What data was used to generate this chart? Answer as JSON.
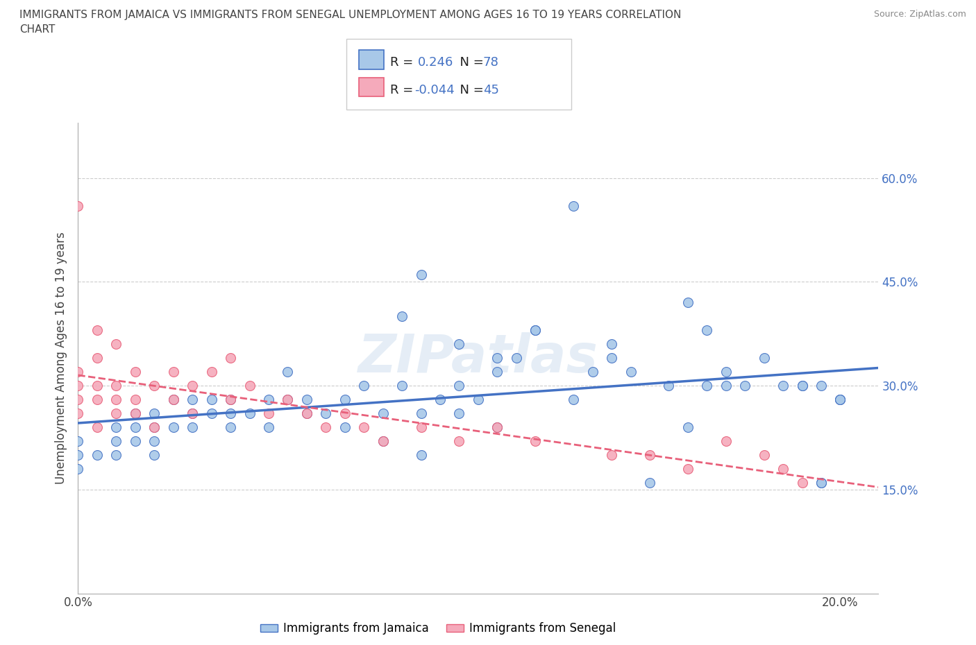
{
  "title_line1": "IMMIGRANTS FROM JAMAICA VS IMMIGRANTS FROM SENEGAL UNEMPLOYMENT AMONG AGES 16 TO 19 YEARS CORRELATION",
  "title_line2": "CHART",
  "source_text": "Source: ZipAtlas.com",
  "ylabel": "Unemployment Among Ages 16 to 19 years",
  "xlim": [
    0.0,
    0.21
  ],
  "ylim": [
    0.0,
    0.68
  ],
  "xticks": [
    0.0,
    0.05,
    0.1,
    0.15,
    0.2
  ],
  "xticklabels": [
    "0.0%",
    "",
    "",
    "",
    "20.0%"
  ],
  "yticks": [
    0.0,
    0.15,
    0.3,
    0.45,
    0.6
  ],
  "yticklabels_right": [
    "",
    "15.0%",
    "30.0%",
    "45.0%",
    "60.0%"
  ],
  "color_jamaica": "#a8c8e8",
  "color_senegal": "#f5aabb",
  "line_jamaica": "#4472c4",
  "line_senegal": "#e8607a",
  "R_jamaica": 0.246,
  "N_jamaica": 78,
  "R_senegal": -0.044,
  "N_senegal": 45,
  "jamaica_x": [
    0.0,
    0.0,
    0.0,
    0.005,
    0.01,
    0.01,
    0.01,
    0.015,
    0.015,
    0.015,
    0.02,
    0.02,
    0.02,
    0.02,
    0.025,
    0.025,
    0.03,
    0.03,
    0.03,
    0.035,
    0.035,
    0.04,
    0.04,
    0.04,
    0.045,
    0.05,
    0.05,
    0.055,
    0.055,
    0.06,
    0.06,
    0.065,
    0.07,
    0.07,
    0.075,
    0.08,
    0.08,
    0.085,
    0.09,
    0.09,
    0.095,
    0.1,
    0.1,
    0.105,
    0.11,
    0.11,
    0.115,
    0.12,
    0.13,
    0.135,
    0.14,
    0.145,
    0.15,
    0.16,
    0.165,
    0.17,
    0.175,
    0.18,
    0.19,
    0.195,
    0.195,
    0.085,
    0.09,
    0.1,
    0.11,
    0.12,
    0.13,
    0.14,
    0.155,
    0.16,
    0.165,
    0.17,
    0.185,
    0.19,
    0.195,
    0.2,
    0.2,
    0.2
  ],
  "jamaica_y": [
    0.22,
    0.2,
    0.18,
    0.2,
    0.22,
    0.24,
    0.2,
    0.22,
    0.24,
    0.26,
    0.22,
    0.24,
    0.26,
    0.2,
    0.24,
    0.28,
    0.24,
    0.26,
    0.28,
    0.26,
    0.28,
    0.24,
    0.26,
    0.28,
    0.26,
    0.24,
    0.28,
    0.28,
    0.32,
    0.26,
    0.28,
    0.26,
    0.24,
    0.28,
    0.3,
    0.22,
    0.26,
    0.3,
    0.2,
    0.26,
    0.28,
    0.26,
    0.3,
    0.28,
    0.24,
    0.32,
    0.34,
    0.38,
    0.28,
    0.32,
    0.36,
    0.32,
    0.16,
    0.42,
    0.38,
    0.32,
    0.3,
    0.34,
    0.3,
    0.3,
    0.16,
    0.4,
    0.46,
    0.36,
    0.34,
    0.38,
    0.56,
    0.34,
    0.3,
    0.24,
    0.3,
    0.3,
    0.3,
    0.3,
    0.16,
    0.28,
    0.28,
    0.28
  ],
  "senegal_x": [
    0.0,
    0.0,
    0.0,
    0.0,
    0.0,
    0.005,
    0.005,
    0.005,
    0.005,
    0.005,
    0.01,
    0.01,
    0.01,
    0.01,
    0.015,
    0.015,
    0.015,
    0.02,
    0.02,
    0.025,
    0.025,
    0.03,
    0.03,
    0.035,
    0.04,
    0.04,
    0.045,
    0.05,
    0.055,
    0.06,
    0.065,
    0.07,
    0.075,
    0.08,
    0.09,
    0.1,
    0.11,
    0.12,
    0.14,
    0.15,
    0.16,
    0.17,
    0.18,
    0.185,
    0.19
  ],
  "senegal_y": [
    0.26,
    0.28,
    0.3,
    0.32,
    0.56,
    0.24,
    0.28,
    0.3,
    0.34,
    0.38,
    0.26,
    0.28,
    0.3,
    0.36,
    0.26,
    0.28,
    0.32,
    0.24,
    0.3,
    0.28,
    0.32,
    0.26,
    0.3,
    0.32,
    0.28,
    0.34,
    0.3,
    0.26,
    0.28,
    0.26,
    0.24,
    0.26,
    0.24,
    0.22,
    0.24,
    0.22,
    0.24,
    0.22,
    0.2,
    0.2,
    0.18,
    0.22,
    0.2,
    0.18,
    0.16
  ]
}
